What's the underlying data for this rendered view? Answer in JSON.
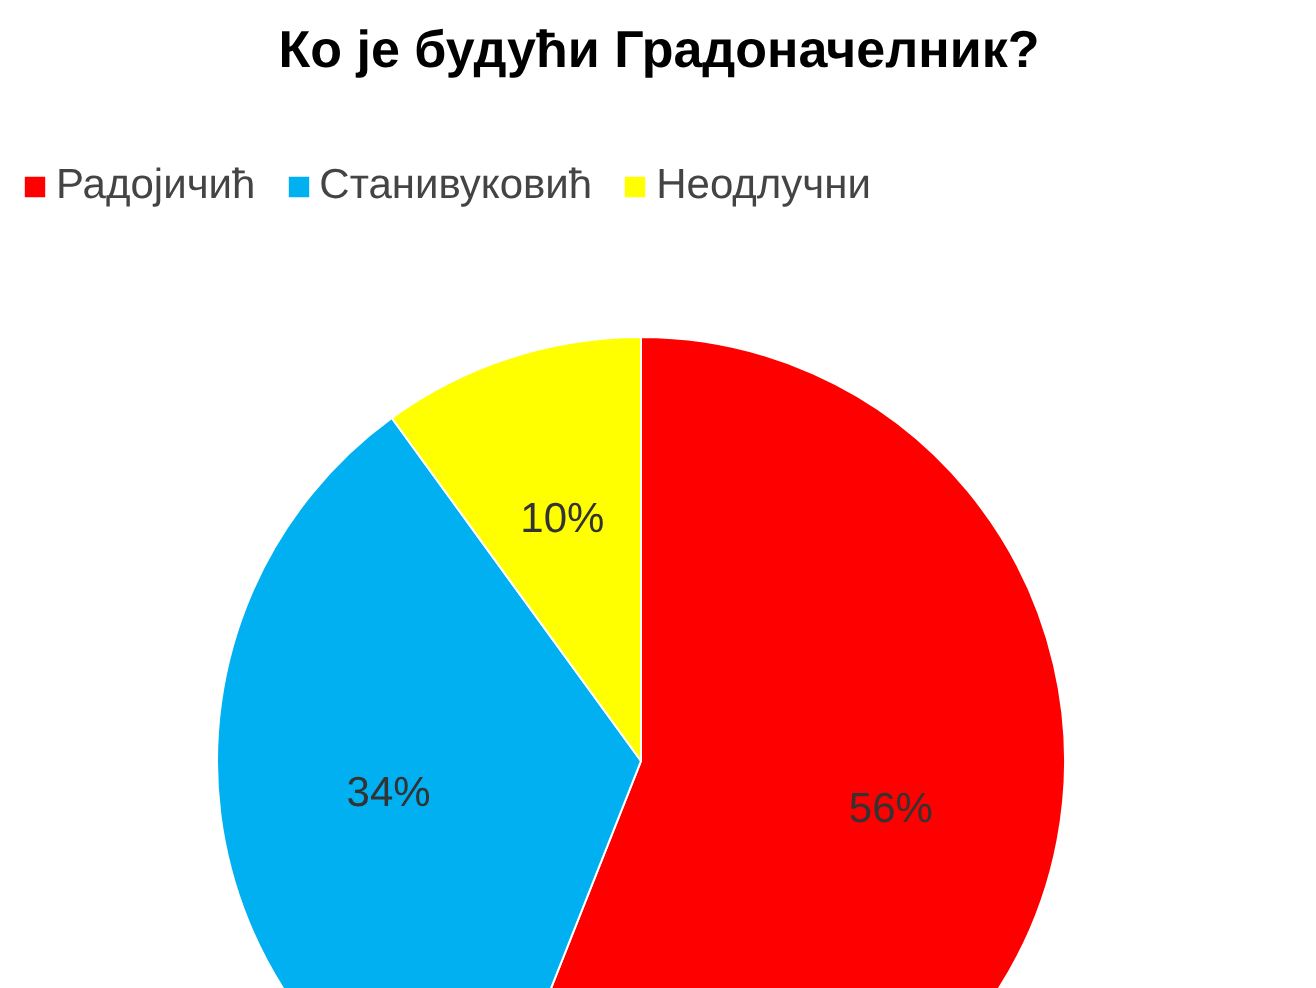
{
  "chart_data": {
    "type": "pie",
    "title": "Ко је будући Градоначелник?",
    "categories": [
      "Радојичић",
      "Станивуковић",
      "Неодлучни"
    ],
    "values": [
      56,
      34,
      10
    ],
    "colors": [
      "#ff0000",
      "#00b0f0",
      "#ffff00"
    ],
    "value_labels": [
      "56%",
      "34%",
      "10%"
    ],
    "legend": "top"
  }
}
